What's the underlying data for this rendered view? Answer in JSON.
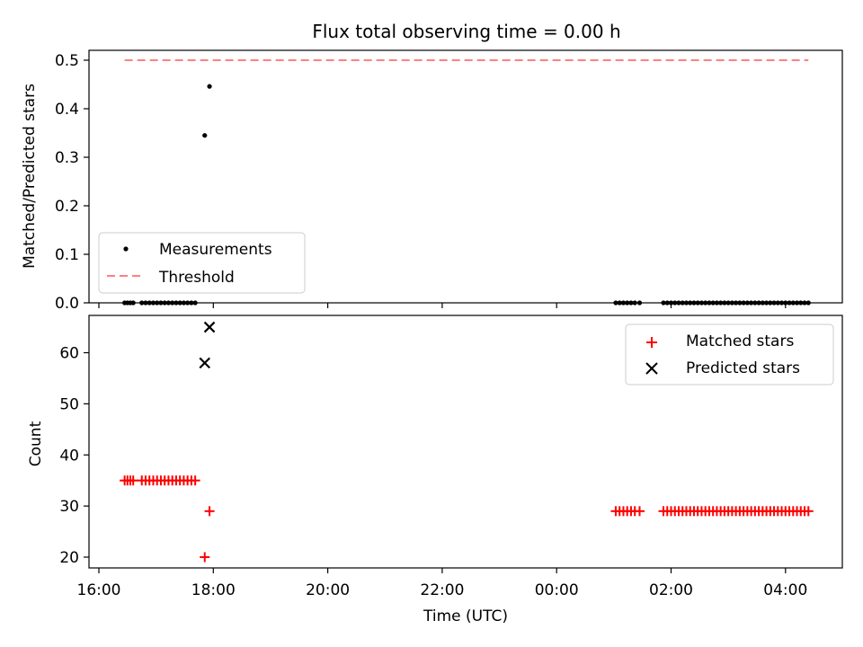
{
  "chart_data": [
    {
      "type": "scatter",
      "title": "Flux total observing time = 0.00 h",
      "ylabel": "Matched/Predicted stars",
      "xlabel": "",
      "ylim": [
        0,
        0.52
      ],
      "yticks": [
        "0.0",
        "0.1",
        "0.2",
        "0.3",
        "0.4",
        "0.5"
      ],
      "grid": false,
      "legend_position": "lower-left",
      "series": [
        {
          "name": "Measurements",
          "marker": "dot",
          "color": "#000000",
          "points": [
            {
              "x": "16:27",
              "y": 0.0
            },
            {
              "x": "16:30",
              "y": 0.0
            },
            {
              "x": "16:33",
              "y": 0.0
            },
            {
              "x": "16:36",
              "y": 0.0
            },
            {
              "x": "16:45",
              "y": 0.0
            },
            {
              "x": "16:49",
              "y": 0.0
            },
            {
              "x": "16:53",
              "y": 0.0
            },
            {
              "x": "16:57",
              "y": 0.0
            },
            {
              "x": "17:01",
              "y": 0.0
            },
            {
              "x": "17:05",
              "y": 0.0
            },
            {
              "x": "17:09",
              "y": 0.0
            },
            {
              "x": "17:13",
              "y": 0.0
            },
            {
              "x": "17:17",
              "y": 0.0
            },
            {
              "x": "17:21",
              "y": 0.0
            },
            {
              "x": "17:25",
              "y": 0.0
            },
            {
              "x": "17:29",
              "y": 0.0
            },
            {
              "x": "17:33",
              "y": 0.0
            },
            {
              "x": "17:37",
              "y": 0.0
            },
            {
              "x": "17:41",
              "y": 0.0
            },
            {
              "x": "17:51",
              "y": 0.345
            },
            {
              "x": "17:56",
              "y": 0.446
            },
            {
              "x": "01:02",
              "y": 0.0
            },
            {
              "x": "01:06",
              "y": 0.0
            },
            {
              "x": "01:10",
              "y": 0.0
            },
            {
              "x": "01:14",
              "y": 0.0
            },
            {
              "x": "01:18",
              "y": 0.0
            },
            {
              "x": "01:22",
              "y": 0.0
            },
            {
              "x": "01:27",
              "y": 0.0
            },
            {
              "x": "01:52",
              "y": 0.0
            },
            {
              "x": "01:56",
              "y": 0.0
            },
            {
              "x": "02:00",
              "y": 0.0
            },
            {
              "x": "02:04",
              "y": 0.0
            },
            {
              "x": "02:08",
              "y": 0.0
            },
            {
              "x": "02:12",
              "y": 0.0
            },
            {
              "x": "02:16",
              "y": 0.0
            },
            {
              "x": "02:20",
              "y": 0.0
            },
            {
              "x": "02:24",
              "y": 0.0
            },
            {
              "x": "02:28",
              "y": 0.0
            },
            {
              "x": "02:32",
              "y": 0.0
            },
            {
              "x": "02:36",
              "y": 0.0
            },
            {
              "x": "02:40",
              "y": 0.0
            },
            {
              "x": "02:44",
              "y": 0.0
            },
            {
              "x": "02:48",
              "y": 0.0
            },
            {
              "x": "02:52",
              "y": 0.0
            },
            {
              "x": "02:56",
              "y": 0.0
            },
            {
              "x": "03:00",
              "y": 0.0
            },
            {
              "x": "03:04",
              "y": 0.0
            },
            {
              "x": "03:08",
              "y": 0.0
            },
            {
              "x": "03:12",
              "y": 0.0
            },
            {
              "x": "03:16",
              "y": 0.0
            },
            {
              "x": "03:20",
              "y": 0.0
            },
            {
              "x": "03:24",
              "y": 0.0
            },
            {
              "x": "03:28",
              "y": 0.0
            },
            {
              "x": "03:32",
              "y": 0.0
            },
            {
              "x": "03:36",
              "y": 0.0
            },
            {
              "x": "03:40",
              "y": 0.0
            },
            {
              "x": "03:44",
              "y": 0.0
            },
            {
              "x": "03:48",
              "y": 0.0
            },
            {
              "x": "03:52",
              "y": 0.0
            },
            {
              "x": "03:56",
              "y": 0.0
            },
            {
              "x": "04:00",
              "y": 0.0
            },
            {
              "x": "04:04",
              "y": 0.0
            },
            {
              "x": "04:08",
              "y": 0.0
            },
            {
              "x": "04:12",
              "y": 0.0
            },
            {
              "x": "04:16",
              "y": 0.0
            },
            {
              "x": "04:20",
              "y": 0.0
            },
            {
              "x": "04:24",
              "y": 0.0
            }
          ]
        },
        {
          "name": "Threshold",
          "style": "dashed-line",
          "color": "#ff7f7f",
          "points": [
            {
              "x": "16:27",
              "y": 0.5
            },
            {
              "x": "04:24",
              "y": 0.5
            }
          ]
        }
      ]
    },
    {
      "type": "scatter",
      "title": "",
      "ylabel": "Count",
      "xlabel": "Time (UTC)",
      "ylim": [
        18,
        68
      ],
      "yticks": [
        "20",
        "30",
        "40",
        "50",
        "60"
      ],
      "xticks": [
        "16:00",
        "18:00",
        "20:00",
        "22:00",
        "00:00",
        "02:00",
        "04:00"
      ],
      "grid": false,
      "legend_position": "top-right",
      "series": [
        {
          "name": "Matched stars",
          "marker": "plus",
          "color": "#ff0000",
          "points": [
            {
              "x": "16:27",
              "y": 35
            },
            {
              "x": "16:30",
              "y": 35
            },
            {
              "x": "16:33",
              "y": 35
            },
            {
              "x": "16:36",
              "y": 35
            },
            {
              "x": "16:45",
              "y": 35
            },
            {
              "x": "16:49",
              "y": 35
            },
            {
              "x": "16:53",
              "y": 35
            },
            {
              "x": "16:57",
              "y": 35
            },
            {
              "x": "17:01",
              "y": 35
            },
            {
              "x": "17:05",
              "y": 35
            },
            {
              "x": "17:09",
              "y": 35
            },
            {
              "x": "17:13",
              "y": 35
            },
            {
              "x": "17:17",
              "y": 35
            },
            {
              "x": "17:21",
              "y": 35
            },
            {
              "x": "17:25",
              "y": 35
            },
            {
              "x": "17:29",
              "y": 35
            },
            {
              "x": "17:33",
              "y": 35
            },
            {
              "x": "17:37",
              "y": 35
            },
            {
              "x": "17:41",
              "y": 35
            },
            {
              "x": "17:51",
              "y": 20
            },
            {
              "x": "17:56",
              "y": 29
            },
            {
              "x": "01:02",
              "y": 29
            },
            {
              "x": "01:06",
              "y": 29
            },
            {
              "x": "01:10",
              "y": 29
            },
            {
              "x": "01:14",
              "y": 29
            },
            {
              "x": "01:18",
              "y": 29
            },
            {
              "x": "01:22",
              "y": 29
            },
            {
              "x": "01:27",
              "y": 29
            },
            {
              "x": "01:52",
              "y": 29
            },
            {
              "x": "01:56",
              "y": 29
            },
            {
              "x": "02:00",
              "y": 29
            },
            {
              "x": "02:04",
              "y": 29
            },
            {
              "x": "02:08",
              "y": 29
            },
            {
              "x": "02:12",
              "y": 29
            },
            {
              "x": "02:16",
              "y": 29
            },
            {
              "x": "02:20",
              "y": 29
            },
            {
              "x": "02:24",
              "y": 29
            },
            {
              "x": "02:28",
              "y": 29
            },
            {
              "x": "02:32",
              "y": 29
            },
            {
              "x": "02:36",
              "y": 29
            },
            {
              "x": "02:40",
              "y": 29
            },
            {
              "x": "02:44",
              "y": 29
            },
            {
              "x": "02:48",
              "y": 29
            },
            {
              "x": "02:52",
              "y": 29
            },
            {
              "x": "02:56",
              "y": 29
            },
            {
              "x": "03:00",
              "y": 29
            },
            {
              "x": "03:04",
              "y": 29
            },
            {
              "x": "03:08",
              "y": 29
            },
            {
              "x": "03:12",
              "y": 29
            },
            {
              "x": "03:16",
              "y": 29
            },
            {
              "x": "03:20",
              "y": 29
            },
            {
              "x": "03:24",
              "y": 29
            },
            {
              "x": "03:28",
              "y": 29
            },
            {
              "x": "03:32",
              "y": 29
            },
            {
              "x": "03:36",
              "y": 29
            },
            {
              "x": "03:40",
              "y": 29
            },
            {
              "x": "03:44",
              "y": 29
            },
            {
              "x": "03:48",
              "y": 29
            },
            {
              "x": "03:52",
              "y": 29
            },
            {
              "x": "03:56",
              "y": 29
            },
            {
              "x": "04:00",
              "y": 29
            },
            {
              "x": "04:04",
              "y": 29
            },
            {
              "x": "04:08",
              "y": 29
            },
            {
              "x": "04:12",
              "y": 29
            },
            {
              "x": "04:16",
              "y": 29
            },
            {
              "x": "04:20",
              "y": 29
            },
            {
              "x": "04:24",
              "y": 29
            }
          ]
        },
        {
          "name": "Predicted stars",
          "marker": "x",
          "color": "#000000",
          "points": [
            {
              "x": "17:51",
              "y": 58
            },
            {
              "x": "17:56",
              "y": 65
            }
          ]
        }
      ]
    }
  ]
}
